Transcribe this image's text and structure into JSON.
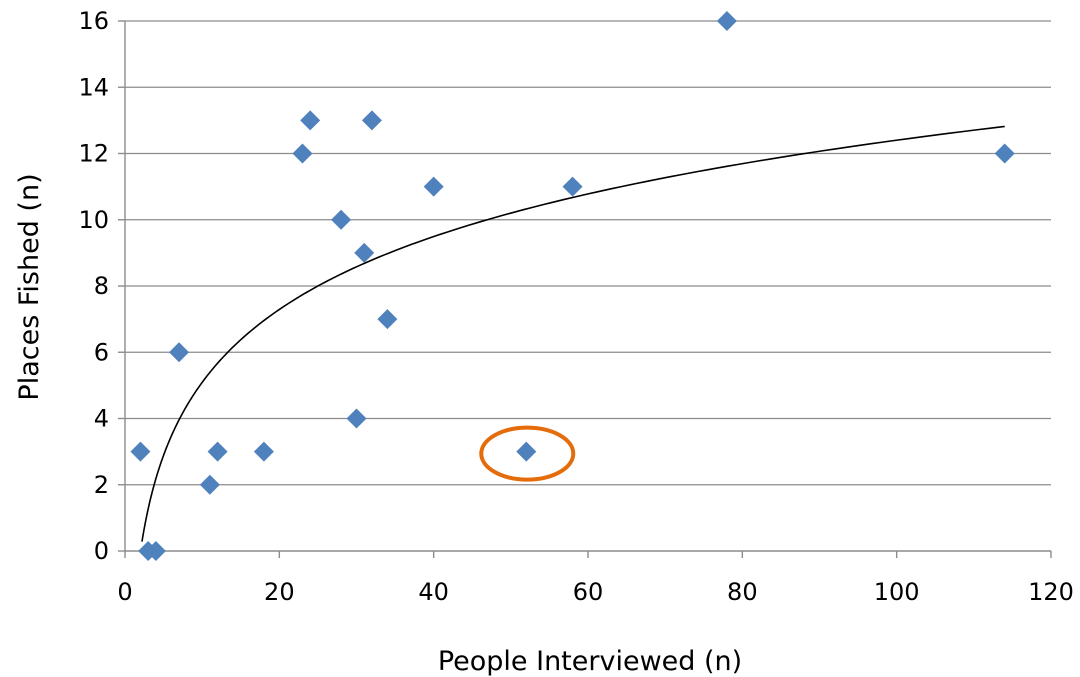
{
  "chart_data": {
    "type": "scatter",
    "xlabel": "People Interviewed (n)",
    "ylabel": "Places Fished (n)",
    "xlim": [
      0,
      120
    ],
    "ylim": [
      0,
      16
    ],
    "x_ticks": [
      0,
      20,
      40,
      60,
      80,
      100,
      120
    ],
    "y_ticks": [
      0,
      2,
      4,
      6,
      8,
      10,
      12,
      14,
      16
    ],
    "grid": "horizontal",
    "legend": "none",
    "marker": "diamond",
    "marker_color": "#4f81bd",
    "series": [
      {
        "points": [
          {
            "x": 2,
            "y": 3
          },
          {
            "x": 3,
            "y": 0
          },
          {
            "x": 4,
            "y": 0
          },
          {
            "x": 7,
            "y": 6
          },
          {
            "x": 11,
            "y": 2
          },
          {
            "x": 12,
            "y": 3
          },
          {
            "x": 18,
            "y": 3
          },
          {
            "x": 23,
            "y": 12
          },
          {
            "x": 24,
            "y": 13
          },
          {
            "x": 28,
            "y": 10
          },
          {
            "x": 30,
            "y": 4
          },
          {
            "x": 31,
            "y": 9
          },
          {
            "x": 32,
            "y": 13
          },
          {
            "x": 34,
            "y": 7
          },
          {
            "x": 40,
            "y": 11
          },
          {
            "x": 52,
            "y": 3
          },
          {
            "x": 58,
            "y": 11
          },
          {
            "x": 78,
            "y": 16
          },
          {
            "x": 114,
            "y": 12
          }
        ]
      }
    ],
    "trendline": {
      "type": "logarithmic",
      "color": "#000000",
      "x_range": [
        2.2,
        114
      ],
      "coefficient": 3.175,
      "intercept": -2.22
    },
    "highlight": {
      "shape": "ellipse",
      "color": "#e46c0a",
      "x": 52,
      "y": 3
    }
  }
}
